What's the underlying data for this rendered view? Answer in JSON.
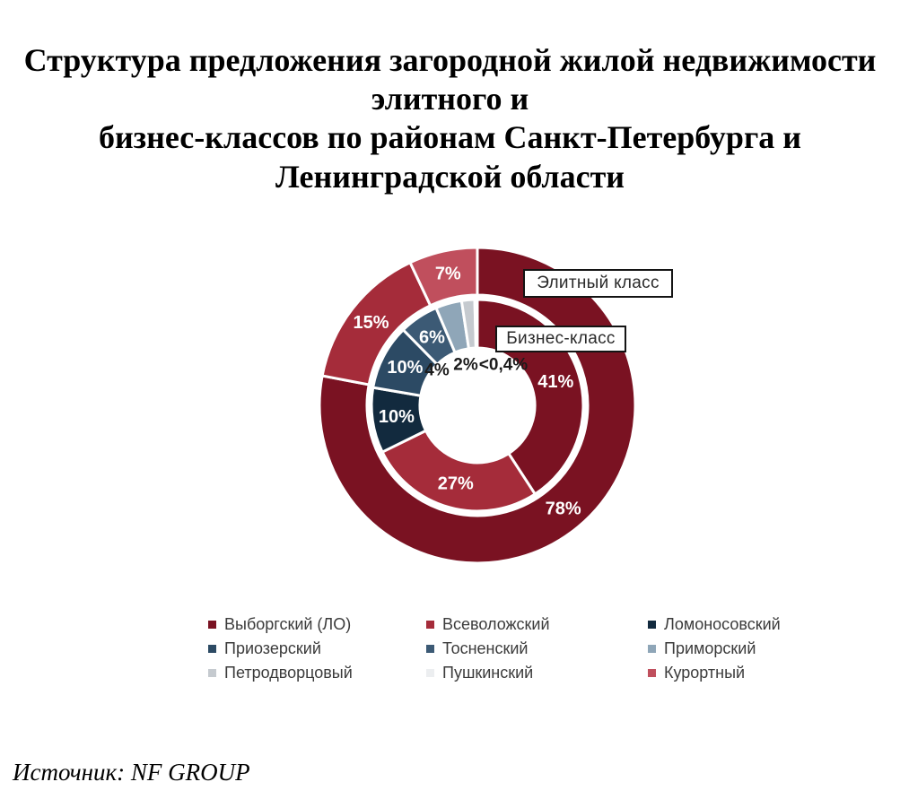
{
  "title": "Структура предложения загородной жилой недвижимости\nэлитного и\nбизнес-классов по районам Санкт-Петербурга и\nЛенинградской области",
  "source": "Источник: NF GROUP",
  "callouts": {
    "elite": "Элитный класс",
    "business": "Бизнес-класс"
  },
  "palette": {
    "vyborgsky": "#7A1222",
    "vsevolozhsky": "#A52C3A",
    "lomonosovsky": "#122A3E",
    "priozersky": "#2C4A64",
    "tosnensky": "#3C5A75",
    "primorsky": "#8FA6B8",
    "petrodvortsovy": "#C5CACF",
    "pushkinsky": "#ECEEF0",
    "kurortny": "#C04F5D"
  },
  "chart_data": {
    "type": "pie",
    "subtype": "nested-donut",
    "grid": false,
    "legend_position": "bottom",
    "rings": [
      {
        "name": "Элитный класс",
        "position": "outer",
        "slices": [
          {
            "district": "Выборгский (ЛО)",
            "value": 78,
            "label": "78%",
            "color": "#7A1222"
          },
          {
            "district": "Всеволожский",
            "value": 15,
            "label": "15%",
            "color": "#A52C3A"
          },
          {
            "district": "Курортный",
            "value": 7,
            "label": "7%",
            "color": "#C04F5D"
          }
        ]
      },
      {
        "name": "Бизнес-класс",
        "position": "inner",
        "slices": [
          {
            "district": "Выборгский (ЛО)",
            "value": 41,
            "label": "41%",
            "color": "#7A1222"
          },
          {
            "district": "Всеволожский",
            "value": 27,
            "label": "27%",
            "color": "#A52C3A"
          },
          {
            "district": "Ломоносовский",
            "value": 10,
            "label": "10%",
            "color": "#122A3E"
          },
          {
            "district": "Приозерский",
            "value": 10,
            "label": "10%",
            "color": "#2C4A64"
          },
          {
            "district": "Тосненский",
            "value": 6,
            "label": "6%",
            "color": "#3C5A75"
          },
          {
            "district": "Приморский",
            "value": 4,
            "label": "4%",
            "color": "#8FA6B8",
            "label_outside": true,
            "label_xy": [
              135,
              141
            ]
          },
          {
            "district": "Петродворцовый",
            "value": 2,
            "label": "2%",
            "color": "#C5CACF",
            "label_outside": true,
            "label_xy": [
              167,
              135
            ]
          },
          {
            "district": "Пушкинский",
            "value": 0.4,
            "label": "<0,4%",
            "color": "#ECEEF0",
            "label_outside": true,
            "label_xy": [
              209,
              135
            ]
          }
        ]
      }
    ],
    "legend": [
      {
        "label": "Выборгский (ЛО)",
        "color": "#7A1222"
      },
      {
        "label": "Всеволожский",
        "color": "#A52C3A"
      },
      {
        "label": "Ломоносовский",
        "color": "#122A3E"
      },
      {
        "label": "Приозерский",
        "color": "#2C4A64"
      },
      {
        "label": "Тосненский",
        "color": "#3C5A75"
      },
      {
        "label": "Приморский",
        "color": "#8FA6B8"
      },
      {
        "label": "Петродворцовый",
        "color": "#C5CACF"
      },
      {
        "label": "Пушкинский",
        "color": "#ECEEF0"
      },
      {
        "label": "Курортный",
        "color": "#C04F5D"
      }
    ]
  }
}
